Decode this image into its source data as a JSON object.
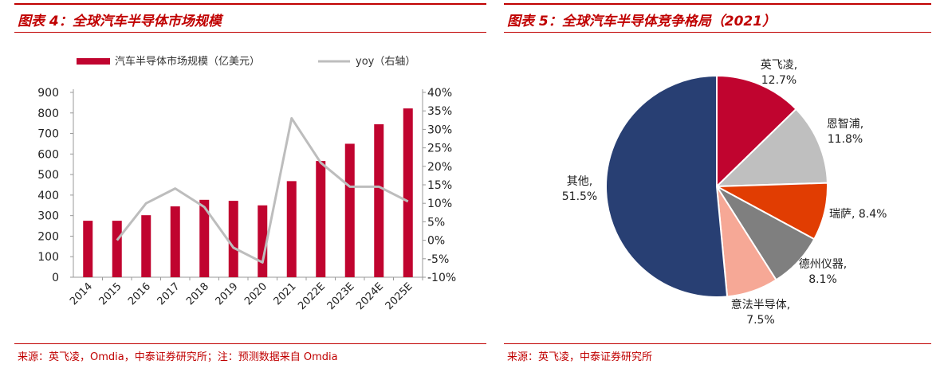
{
  "left": {
    "title": "图表 4：全球汽车半导体市场规模",
    "source": "来源：英飞凌，Omdia，中泰证券研究所；注：预测数据来自 Omdia"
  },
  "right": {
    "title": "图表 5：全球汽车半导体竞争格局（2021）",
    "source": "来源：英飞凌，中泰证券研究所"
  },
  "chart_data": [
    {
      "type": "bar",
      "categories": [
        "2014",
        "2015",
        "2016",
        "2017",
        "2018",
        "2019",
        "2020",
        "2021",
        "2022E",
        "2023E",
        "2024E",
        "2025E"
      ],
      "series": [
        {
          "name": "汽车半导体市场规模（亿美元）",
          "type": "bar",
          "axis": "left",
          "values": [
            275,
            275,
            302,
            345,
            377,
            372,
            350,
            468,
            566,
            650,
            745,
            822
          ],
          "color": "#c0042f"
        },
        {
          "name": "yoy（右轴）",
          "type": "line",
          "axis": "right",
          "values": [
            null,
            0,
            10,
            14,
            9,
            -2,
            -6,
            33,
            21,
            14.5,
            14.5,
            10.5
          ],
          "color": "#bdbdbd"
        }
      ],
      "ylim": [
        0,
        900
      ],
      "yticks": [
        "0",
        "100",
        "200",
        "300",
        "400",
        "500",
        "600",
        "700",
        "800",
        "900"
      ],
      "y2lim": [
        -10,
        40
      ],
      "y2ticks": [
        "-10%",
        "-5%",
        "0%",
        "5%",
        "10%",
        "15%",
        "20%",
        "25%",
        "30%",
        "35%",
        "40%"
      ],
      "legend": "top"
    },
    {
      "type": "pie",
      "slices": [
        {
          "label": "英飞凌,",
          "value": 12.7,
          "value_label": "12.7%",
          "color": "#c0042f"
        },
        {
          "label": "恩智浦,",
          "value": 11.8,
          "value_label": "11.8%",
          "color": "#bfbfbf"
        },
        {
          "label": "瑞萨, 8.4%",
          "value": 8.4,
          "value_label": "",
          "color": "#e13d02"
        },
        {
          "label": "德州仪器,",
          "value": 8.1,
          "value_label": "8.1%",
          "color": "#7f7f7f"
        },
        {
          "label": "意法半导体,",
          "value": 7.5,
          "value_label": "7.5%",
          "color": "#f6a896"
        },
        {
          "label": "其他,",
          "value": 51.5,
          "value_label": "51.5%",
          "color": "#283f73"
        }
      ]
    }
  ]
}
